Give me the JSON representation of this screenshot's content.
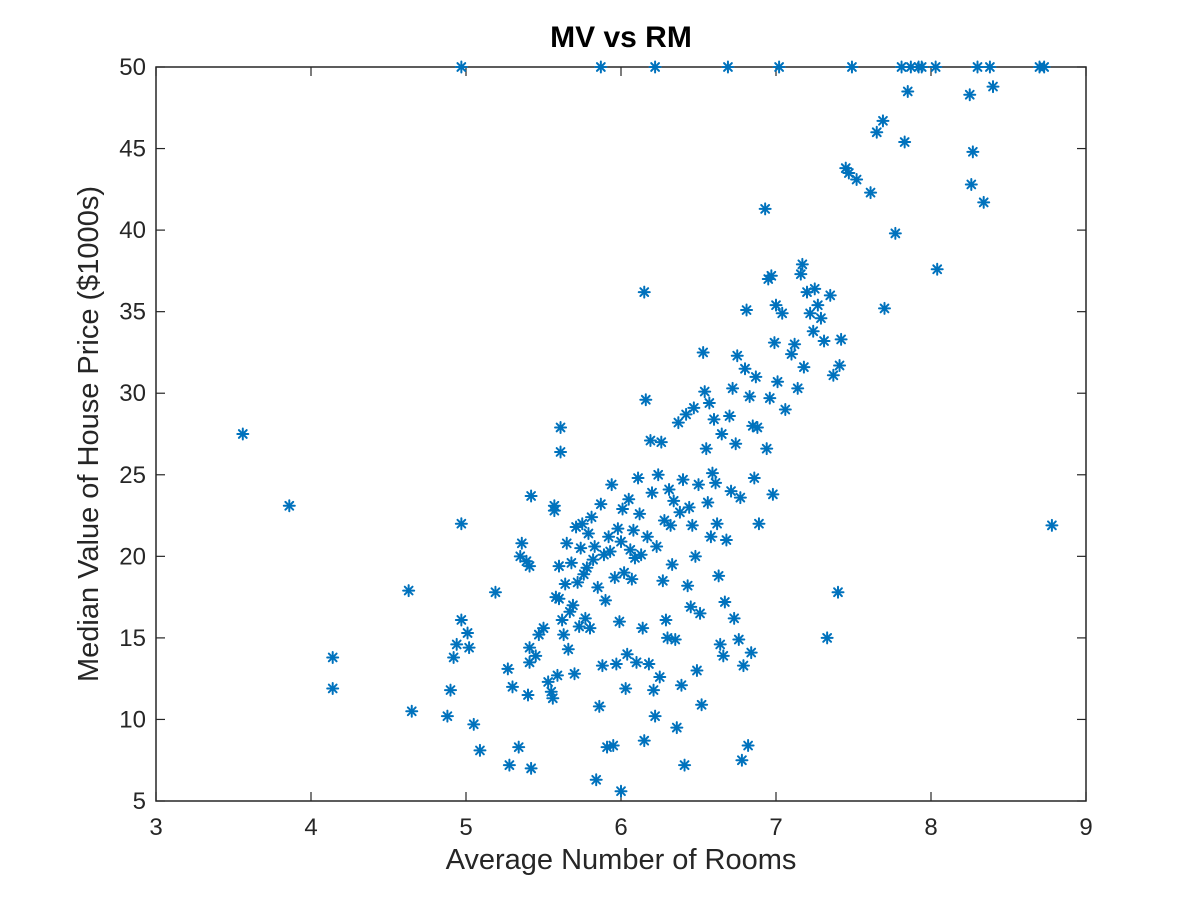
{
  "chart_data": {
    "type": "scatter",
    "title": "MV vs RM",
    "xlabel": "Average Number of Rooms",
    "ylabel": "Median Value of House Price ($1000s)",
    "xlim": [
      3,
      9
    ],
    "ylim": [
      5,
      50
    ],
    "xticks": [
      3,
      4,
      5,
      6,
      7,
      8,
      9
    ],
    "yticks": [
      5,
      10,
      15,
      20,
      25,
      30,
      35,
      40,
      45,
      50
    ],
    "grid": false,
    "marker": "asterisk",
    "color": "#0072BD",
    "series": [
      {
        "points": [
          [
            3.56,
            27.5
          ],
          [
            3.86,
            23.1
          ],
          [
            4.14,
            13.8
          ],
          [
            4.14,
            11.9
          ],
          [
            4.63,
            17.9
          ],
          [
            4.65,
            10.5
          ],
          [
            4.88,
            10.2
          ],
          [
            4.9,
            11.8
          ],
          [
            4.92,
            13.8
          ],
          [
            4.94,
            14.6
          ],
          [
            4.97,
            16.1
          ],
          [
            4.97,
            22.0
          ],
          [
            5.01,
            15.3
          ],
          [
            5.02,
            14.4
          ],
          [
            5.05,
            9.7
          ],
          [
            5.09,
            8.1
          ],
          [
            5.19,
            17.8
          ],
          [
            5.27,
            13.1
          ],
          [
            5.28,
            7.2
          ],
          [
            5.3,
            12.0
          ],
          [
            5.34,
            8.3
          ],
          [
            5.35,
            20.0
          ],
          [
            5.36,
            20.8
          ],
          [
            5.39,
            19.7
          ],
          [
            5.4,
            11.5
          ],
          [
            5.41,
            19.4
          ],
          [
            5.41,
            14.4
          ],
          [
            5.41,
            13.5
          ],
          [
            5.42,
            7.0
          ],
          [
            5.42,
            23.7
          ],
          [
            5.45,
            13.9
          ],
          [
            5.47,
            15.2
          ],
          [
            5.5,
            15.6
          ],
          [
            5.53,
            12.3
          ],
          [
            5.55,
            11.7
          ],
          [
            5.56,
            11.3
          ],
          [
            5.57,
            22.8
          ],
          [
            5.57,
            23.1
          ],
          [
            5.58,
            17.5
          ],
          [
            5.59,
            12.7
          ],
          [
            5.6,
            17.4
          ],
          [
            5.6,
            19.4
          ],
          [
            5.61,
            26.4
          ],
          [
            5.61,
            27.9
          ],
          [
            5.62,
            16.1
          ],
          [
            5.63,
            15.2
          ],
          [
            5.64,
            18.3
          ],
          [
            5.65,
            20.8
          ],
          [
            5.66,
            14.3
          ],
          [
            5.67,
            16.6
          ],
          [
            5.68,
            19.6
          ],
          [
            5.69,
            17.0
          ],
          [
            5.7,
            12.8
          ],
          [
            5.71,
            21.8
          ],
          [
            5.72,
            18.4
          ],
          [
            5.73,
            15.7
          ],
          [
            5.74,
            20.5
          ],
          [
            5.75,
            22.0
          ],
          [
            5.76,
            18.9
          ],
          [
            5.77,
            16.2
          ],
          [
            5.78,
            19.3
          ],
          [
            5.79,
            21.4
          ],
          [
            5.8,
            15.6
          ],
          [
            5.81,
            22.4
          ],
          [
            5.82,
            19.8
          ],
          [
            5.83,
            20.6
          ],
          [
            5.84,
            6.3
          ],
          [
            5.85,
            18.1
          ],
          [
            5.86,
            10.8
          ],
          [
            5.87,
            50.0
          ],
          [
            5.87,
            23.2
          ],
          [
            5.88,
            13.3
          ],
          [
            5.89,
            20.1
          ],
          [
            5.9,
            17.3
          ],
          [
            5.91,
            8.3
          ],
          [
            5.92,
            21.2
          ],
          [
            5.93,
            20.3
          ],
          [
            5.94,
            24.4
          ],
          [
            5.95,
            8.4
          ],
          [
            5.96,
            18.7
          ],
          [
            5.97,
            13.4
          ],
          [
            5.98,
            21.7
          ],
          [
            5.99,
            16.0
          ],
          [
            6.0,
            5.6
          ],
          [
            6.0,
            20.9
          ],
          [
            6.01,
            22.9
          ],
          [
            6.02,
            19.0
          ],
          [
            6.03,
            11.9
          ],
          [
            6.04,
            14.0
          ],
          [
            6.05,
            23.5
          ],
          [
            6.06,
            20.4
          ],
          [
            6.07,
            18.6
          ],
          [
            6.08,
            21.6
          ],
          [
            6.09,
            19.9
          ],
          [
            6.1,
            13.5
          ],
          [
            6.11,
            24.8
          ],
          [
            6.12,
            22.6
          ],
          [
            6.13,
            20.1
          ],
          [
            6.14,
            15.6
          ],
          [
            6.15,
            36.2
          ],
          [
            6.15,
            8.7
          ],
          [
            6.16,
            29.6
          ],
          [
            6.17,
            21.2
          ],
          [
            6.18,
            13.4
          ],
          [
            6.19,
            27.1
          ],
          [
            6.2,
            23.9
          ],
          [
            6.21,
            11.8
          ],
          [
            6.22,
            50.0
          ],
          [
            6.22,
            10.2
          ],
          [
            6.23,
            20.6
          ],
          [
            6.24,
            25.0
          ],
          [
            6.25,
            12.6
          ],
          [
            6.26,
            27.0
          ],
          [
            6.27,
            18.5
          ],
          [
            6.28,
            22.2
          ],
          [
            6.29,
            16.1
          ],
          [
            6.3,
            15.0
          ],
          [
            6.31,
            24.1
          ],
          [
            6.32,
            21.9
          ],
          [
            6.33,
            19.5
          ],
          [
            6.34,
            23.4
          ],
          [
            6.35,
            14.9
          ],
          [
            6.36,
            9.5
          ],
          [
            6.37,
            28.2
          ],
          [
            6.38,
            22.7
          ],
          [
            6.39,
            12.1
          ],
          [
            6.4,
            24.7
          ],
          [
            6.41,
            7.2
          ],
          [
            6.42,
            28.7
          ],
          [
            6.43,
            18.2
          ],
          [
            6.44,
            23.0
          ],
          [
            6.45,
            16.9
          ],
          [
            6.46,
            21.9
          ],
          [
            6.47,
            29.1
          ],
          [
            6.48,
            20.0
          ],
          [
            6.49,
            13.0
          ],
          [
            6.5,
            24.4
          ],
          [
            6.51,
            16.5
          ],
          [
            6.52,
            10.9
          ],
          [
            6.53,
            32.5
          ],
          [
            6.54,
            30.1
          ],
          [
            6.55,
            26.6
          ],
          [
            6.56,
            23.3
          ],
          [
            6.57,
            29.4
          ],
          [
            6.58,
            21.2
          ],
          [
            6.59,
            25.1
          ],
          [
            6.6,
            28.4
          ],
          [
            6.61,
            24.5
          ],
          [
            6.62,
            22.0
          ],
          [
            6.63,
            18.8
          ],
          [
            6.64,
            14.6
          ],
          [
            6.65,
            27.5
          ],
          [
            6.66,
            13.9
          ],
          [
            6.67,
            17.2
          ],
          [
            6.68,
            21.0
          ],
          [
            6.69,
            50.0
          ],
          [
            6.7,
            28.6
          ],
          [
            6.71,
            24.0
          ],
          [
            6.72,
            30.3
          ],
          [
            6.73,
            16.2
          ],
          [
            6.74,
            26.9
          ],
          [
            6.75,
            32.3
          ],
          [
            6.76,
            14.9
          ],
          [
            6.77,
            23.6
          ],
          [
            6.78,
            7.5
          ],
          [
            6.79,
            13.3
          ],
          [
            6.8,
            31.5
          ],
          [
            6.81,
            35.1
          ],
          [
            6.82,
            8.4
          ],
          [
            6.83,
            29.8
          ],
          [
            6.84,
            14.1
          ],
          [
            6.85,
            28.0
          ],
          [
            6.86,
            24.8
          ],
          [
            6.87,
            31.0
          ],
          [
            6.88,
            27.9
          ],
          [
            6.89,
            22.0
          ],
          [
            6.93,
            41.3
          ],
          [
            6.94,
            26.6
          ],
          [
            6.95,
            37.0
          ],
          [
            6.96,
            29.7
          ],
          [
            6.97,
            37.2
          ],
          [
            6.98,
            23.8
          ],
          [
            6.99,
            33.1
          ],
          [
            7.0,
            35.4
          ],
          [
            7.01,
            30.7
          ],
          [
            7.02,
            50.0
          ],
          [
            7.04,
            34.9
          ],
          [
            7.06,
            29.0
          ],
          [
            7.1,
            32.4
          ],
          [
            7.12,
            33.0
          ],
          [
            7.14,
            30.3
          ],
          [
            7.16,
            37.3
          ],
          [
            7.17,
            37.9
          ],
          [
            7.18,
            31.6
          ],
          [
            7.2,
            36.2
          ],
          [
            7.22,
            34.9
          ],
          [
            7.24,
            33.8
          ],
          [
            7.25,
            36.4
          ],
          [
            7.27,
            35.4
          ],
          [
            7.29,
            34.6
          ],
          [
            7.31,
            33.2
          ],
          [
            7.33,
            15.0
          ],
          [
            7.35,
            36.0
          ],
          [
            7.37,
            31.1
          ],
          [
            7.4,
            17.8
          ],
          [
            7.41,
            31.7
          ],
          [
            7.42,
            33.3
          ],
          [
            7.45,
            43.8
          ],
          [
            7.47,
            43.5
          ],
          [
            7.49,
            50.0
          ],
          [
            7.52,
            43.1
          ],
          [
            7.61,
            42.3
          ],
          [
            7.65,
            46.0
          ],
          [
            7.69,
            46.7
          ],
          [
            7.7,
            35.2
          ],
          [
            7.77,
            39.8
          ],
          [
            7.81,
            50.0
          ],
          [
            7.83,
            45.4
          ],
          [
            7.85,
            48.5
          ],
          [
            7.87,
            50.0
          ],
          [
            7.92,
            50.0
          ],
          [
            7.94,
            50.0
          ],
          [
            8.03,
            50.0
          ],
          [
            8.04,
            37.6
          ],
          [
            8.25,
            48.3
          ],
          [
            8.26,
            42.8
          ],
          [
            8.27,
            44.8
          ],
          [
            8.3,
            50.0
          ],
          [
            8.34,
            41.7
          ],
          [
            8.38,
            50.0
          ],
          [
            8.4,
            48.8
          ],
          [
            8.7,
            50.0
          ],
          [
            8.73,
            50.0
          ],
          [
            8.78,
            21.9
          ],
          [
            4.97,
            50.0
          ]
        ]
      }
    ]
  }
}
